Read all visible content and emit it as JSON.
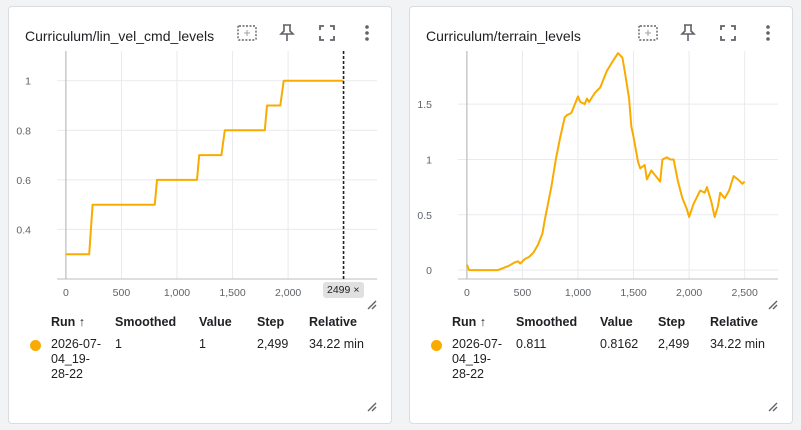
{
  "colors": {
    "series": "#f9ab00",
    "grid": "#e8eaed",
    "axis": "#bdbdbd"
  },
  "table_headers": {
    "run": "Run ↑",
    "smoothed": "Smoothed",
    "value": "Value",
    "step": "Step",
    "relative": "Relative"
  },
  "icons": [
    "fit-to-data-icon",
    "pin-icon",
    "fullscreen-icon",
    "more-vert-icon",
    "resize-icon"
  ],
  "cards": [
    {
      "title": "Curriculum/lin_vel_cmd_levels",
      "step_badge": "2499",
      "row": {
        "run": "2026-07-04_19-28-22",
        "run_lines": [
          "2026-07-",
          "04_19-",
          "28-22"
        ],
        "smoothed": "1",
        "value": "1",
        "step": "2,499",
        "relative": "34.22 min"
      }
    },
    {
      "title": "Curriculum/terrain_levels",
      "row": {
        "run": "2026-07-04_19-28-22",
        "run_lines": [
          "2026-07-",
          "04_19-",
          "28-22"
        ],
        "smoothed": "0.811",
        "value": "0.8162",
        "step": "2,499",
        "relative": "34.22 min"
      }
    }
  ],
  "chart_data": [
    {
      "type": "line",
      "title": "Curriculum/lin_vel_cmd_levels",
      "xlim": [
        -80,
        2800
      ],
      "ylim": [
        0.2,
        1.12
      ],
      "x_ticks": [
        0,
        500,
        1000,
        1500,
        2000
      ],
      "x_tick_labels": [
        "0",
        "500",
        "1,000",
        "1,500",
        "2,000"
      ],
      "y_ticks": [
        0.4,
        0.6,
        0.8,
        1
      ],
      "y_tick_labels": [
        "0.4",
        "0.6",
        "0.8",
        "1"
      ],
      "series": [
        {
          "x": [
            0,
            210,
            240,
            800,
            820,
            1180,
            1200,
            1400,
            1430,
            1790,
            1810,
            1930,
            1960,
            2499
          ],
          "y": [
            0.3,
            0.3,
            0.5,
            0.5,
            0.6,
            0.6,
            0.7,
            0.7,
            0.8,
            0.8,
            0.9,
            0.9,
            1.0,
            1.0
          ]
        }
      ],
      "cursor_x": 2499
    },
    {
      "type": "line",
      "title": "Curriculum/terrain_levels",
      "xlim": [
        -80,
        2800
      ],
      "ylim": [
        -0.08,
        1.98
      ],
      "x_ticks": [
        0,
        500,
        1000,
        1500,
        2000,
        2500
      ],
      "x_tick_labels": [
        "0",
        "500",
        "1,000",
        "1,500",
        "2,000",
        "2,500"
      ],
      "y_ticks": [
        0,
        0.5,
        1,
        1.5
      ],
      "y_tick_labels": [
        "0",
        "0.5",
        "1",
        "1.5"
      ],
      "series": [
        {
          "x": [
            0,
            20,
            50,
            100,
            200,
            280,
            330,
            380,
            430,
            460,
            480,
            520,
            560,
            600,
            640,
            680,
            700,
            720,
            760,
            800,
            840,
            880,
            900,
            940,
            960,
            1000,
            1020,
            1060,
            1080,
            1100,
            1150,
            1200,
            1260,
            1320,
            1360,
            1400,
            1420,
            1460,
            1480,
            1500,
            1540,
            1560,
            1600,
            1620,
            1660,
            1700,
            1740,
            1760,
            1800,
            1830,
            1860,
            1900,
            1940,
            1980,
            2000,
            2040,
            2080,
            2100,
            2140,
            2160,
            2200,
            2230,
            2260,
            2280,
            2320,
            2360,
            2400,
            2440,
            2480,
            2499
          ],
          "y": [
            0.05,
            0.0,
            0.0,
            0.0,
            0.0,
            0.0,
            0.02,
            0.04,
            0.07,
            0.08,
            0.06,
            0.1,
            0.12,
            0.16,
            0.23,
            0.33,
            0.45,
            0.55,
            0.75,
            1.0,
            1.2,
            1.38,
            1.4,
            1.42,
            1.47,
            1.57,
            1.52,
            1.5,
            1.55,
            1.52,
            1.6,
            1.65,
            1.8,
            1.9,
            1.96,
            1.92,
            1.8,
            1.55,
            1.3,
            1.2,
            0.98,
            0.92,
            0.95,
            0.82,
            0.9,
            0.85,
            0.8,
            1.0,
            1.02,
            1.0,
            1.0,
            0.8,
            0.65,
            0.55,
            0.48,
            0.6,
            0.68,
            0.72,
            0.7,
            0.75,
            0.62,
            0.48,
            0.58,
            0.7,
            0.65,
            0.72,
            0.85,
            0.82,
            0.78,
            0.8
          ]
        }
      ]
    }
  ]
}
